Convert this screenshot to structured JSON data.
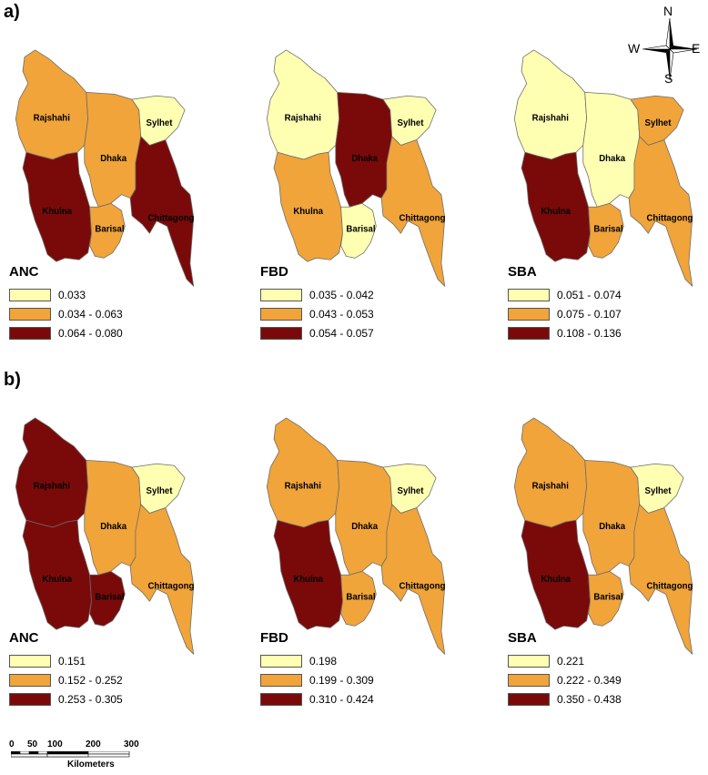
{
  "panels": [
    {
      "label": "a)",
      "maps": [
        {
          "indicator": "ANC",
          "fills": {
            "rajshahi": "mid",
            "dhaka": "mid",
            "sylhet": "low",
            "khulna": "high",
            "barisal": "mid",
            "chittagong": "high"
          },
          "legend": [
            {
              "text": "0.033",
              "level": "low"
            },
            {
              "text": "0.034 - 0.063",
              "level": "mid"
            },
            {
              "text": "0.064 - 0.080",
              "level": "high"
            }
          ]
        },
        {
          "indicator": "FBD",
          "fills": {
            "rajshahi": "low",
            "dhaka": "high",
            "sylhet": "low",
            "khulna": "mid",
            "barisal": "low",
            "chittagong": "mid"
          },
          "legend": [
            {
              "text": "0.035 - 0.042",
              "level": "low"
            },
            {
              "text": "0.043 - 0.053",
              "level": "mid"
            },
            {
              "text": "0.054 - 0.057",
              "level": "high"
            }
          ]
        },
        {
          "indicator": "SBA",
          "fills": {
            "rajshahi": "low",
            "dhaka": "low",
            "sylhet": "mid",
            "khulna": "high",
            "barisal": "mid",
            "chittagong": "mid"
          },
          "legend": [
            {
              "text": "0.051 - 0.074",
              "level": "low"
            },
            {
              "text": "0.075 - 0.107",
              "level": "mid"
            },
            {
              "text": "0.108 - 0.136",
              "level": "high"
            }
          ]
        }
      ]
    },
    {
      "label": "b)",
      "maps": [
        {
          "indicator": "ANC",
          "fills": {
            "rajshahi": "high",
            "dhaka": "mid",
            "sylhet": "low",
            "khulna": "high",
            "barisal": "high",
            "chittagong": "mid"
          },
          "legend": [
            {
              "text": "0.151",
              "level": "low"
            },
            {
              "text": "0.152 - 0.252",
              "level": "mid"
            },
            {
              "text": "0.253 - 0.305",
              "level": "high"
            }
          ]
        },
        {
          "indicator": "FBD",
          "fills": {
            "rajshahi": "mid",
            "dhaka": "mid",
            "sylhet": "low",
            "khulna": "high",
            "barisal": "mid",
            "chittagong": "mid"
          },
          "legend": [
            {
              "text": "0.198",
              "level": "low"
            },
            {
              "text": "0.199 - 0.309",
              "level": "mid"
            },
            {
              "text": "0.310 - 0.424",
              "level": "high"
            }
          ]
        },
        {
          "indicator": "SBA",
          "fills": {
            "rajshahi": "mid",
            "dhaka": "mid",
            "sylhet": "low",
            "khulna": "high",
            "barisal": "mid",
            "chittagong": "mid"
          },
          "legend": [
            {
              "text": "0.221",
              "level": "low"
            },
            {
              "text": "0.222 - 0.349",
              "level": "mid"
            },
            {
              "text": "0.350 - 0.438",
              "level": "high"
            }
          ]
        }
      ]
    }
  ],
  "regions": {
    "rajshahi": "Rajshahi",
    "dhaka": "Dhaka",
    "sylhet": "Sylhet",
    "khulna": "Khulna",
    "barisal": "Barisal",
    "chittagong": "Chittagong"
  },
  "colors": {
    "low": "#ffffb2",
    "mid": "#f0a43a",
    "high": "#7a0a0a"
  },
  "compass": {
    "n": "N",
    "s": "S",
    "e": "E",
    "w": "W"
  },
  "scale": {
    "ticks": [
      "0",
      "50",
      "100",
      "200",
      "300"
    ],
    "unit": "Kilometers"
  }
}
